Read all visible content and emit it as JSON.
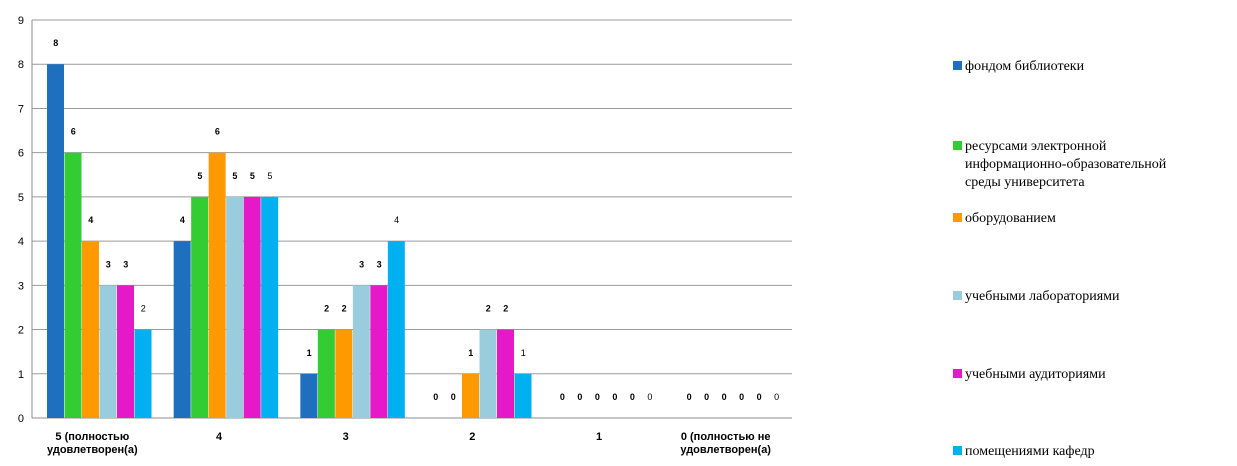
{
  "chart_data": {
    "type": "bar",
    "categories": [
      "5 (полностью удовлетворен(а)",
      "4",
      "3",
      "2",
      "1",
      "0 (полностью не удовлетворен(а)"
    ],
    "category_lines": [
      [
        "5 (полностью",
        "удовлетворен(а)"
      ],
      [
        "4"
      ],
      [
        "3"
      ],
      [
        "2"
      ],
      [
        "1"
      ],
      [
        "0 (полностью не",
        "удовлетворен(а)"
      ]
    ],
    "series": [
      {
        "name": "фондом библиотеки",
        "color": "#1f6fbf",
        "values": [
          8,
          4,
          1,
          0,
          0,
          0
        ]
      },
      {
        "name": "ресурсами электронной информационно-образовательной среды университета",
        "color": "#33cc33",
        "values": [
          6,
          5,
          2,
          0,
          0,
          0
        ]
      },
      {
        "name": "оборудованием",
        "color": "#ff9900",
        "values": [
          4,
          6,
          2,
          1,
          0,
          0
        ]
      },
      {
        "name": "учебными лабораториями",
        "color": "#99ccdd",
        "values": [
          3,
          5,
          3,
          2,
          0,
          0
        ]
      },
      {
        "name": "учебными аудиториями",
        "color": "#e619c8",
        "values": [
          3,
          5,
          3,
          2,
          0,
          0
        ]
      },
      {
        "name": "помещениями кафедр",
        "color": "#00b0f0",
        "values": [
          2,
          5,
          4,
          1,
          0,
          0
        ]
      }
    ],
    "legend_lines": [
      [
        "фондом библиотеки"
      ],
      [
        "ресурсами электронной",
        "информационно-образовательной",
        "среды университета"
      ],
      [
        "оборудованием"
      ],
      [
        "учебными лабораториями"
      ],
      [
        "учебными аудиториями"
      ],
      [
        "помещениями кафедр"
      ]
    ],
    "y_ticks": [
      "0",
      "1",
      "2",
      "3",
      "4",
      "5",
      "6",
      "7",
      "8",
      "9"
    ],
    "ylim": [
      0,
      9
    ],
    "grid": true,
    "legend_position": "right",
    "title": "",
    "xlabel": "",
    "ylabel": ""
  }
}
